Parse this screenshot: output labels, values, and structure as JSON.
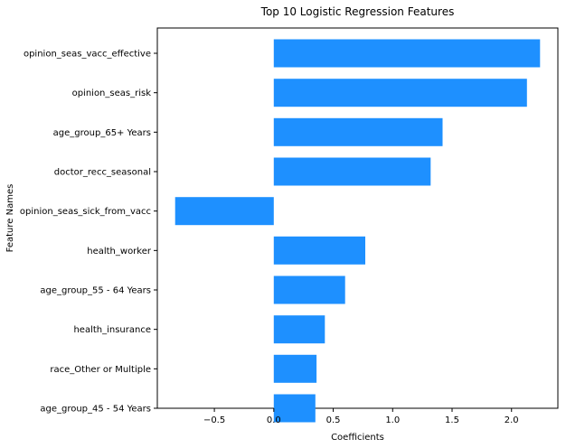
{
  "chart_data": {
    "type": "bar",
    "orientation": "horizontal",
    "title": "Top 10 Logistic Regression Features",
    "xlabel": "Coefficients",
    "ylabel": "Feature Names",
    "categories": [
      "opinion_seas_vacc_effective",
      "opinion_seas_risk",
      "age_group_65+ Years",
      "doctor_recc_seasonal",
      "opinion_seas_sick_from_vacc",
      "health_worker",
      "age_group_55 - 64 Years",
      "health_insurance",
      "race_Other or Multiple",
      "age_group_45 - 54 Years"
    ],
    "values": [
      2.24,
      2.13,
      1.42,
      1.32,
      -0.83,
      0.77,
      0.6,
      0.43,
      0.36,
      0.35
    ],
    "xlim": [
      -0.98,
      2.39
    ],
    "xticks": [
      -0.5,
      0.0,
      0.5,
      1.0,
      1.5,
      2.0
    ],
    "xtick_labels": [
      "−0.5",
      "0.0",
      "0.5",
      "1.0",
      "1.5",
      "2.0"
    ],
    "bar_color": "#1e90ff",
    "grid": false,
    "legend": "none"
  }
}
